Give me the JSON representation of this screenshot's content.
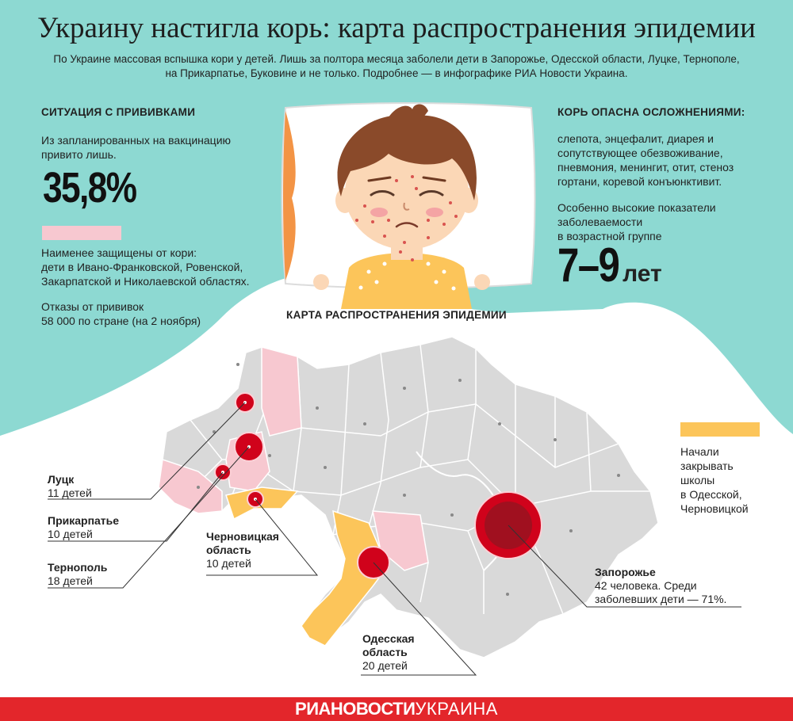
{
  "header": {
    "title": "Украину настигла корь: карта распространения эпидемии",
    "subtitle_line1": "По Украине массовая вспышка кори у детей. Лишь за полтора месяца заболели дети в Запорожье, Одесской области, Луцке, Тернополе,",
    "subtitle_line2": "на Прикарпатье, Буковине и не только. Подробнее — в инфографике РИА Новости Украина."
  },
  "vaccination": {
    "heading": "СИТУАЦИЯ С ПРИВИВКАМИ",
    "planned_line1": "Из запланированных на вакцинацию",
    "planned_line2": "привито лишь.",
    "percent": "35,8%",
    "least_protected_line1": "Наименее защищены от кори:",
    "least_protected_line2": "дети в Ивано-Франковской, Ровенской,",
    "least_protected_line3": "Закарпатской и Николаевской областях.",
    "refusals_line1": "Отказы от прививок",
    "refusals_line2": "58 000 по стране (на 2 ноября)"
  },
  "complications": {
    "heading": "КОРЬ ОПАСНА ОСЛОЖНЕНИЯМИ:",
    "list_line1": "слепота, энцефалит, диарея и",
    "list_line2": "сопутствующее обезвоживание,",
    "list_line3": "пневмония, менингит, отит, стеноз",
    "list_line4": "гортани, коревой конъюнктивит.",
    "incidence_line1": "Особенно высокие показатели",
    "incidence_line2": "заболеваемости",
    "incidence_line3": "в возрастной группе",
    "age_group": "7–9",
    "age_unit": "лет"
  },
  "map": {
    "heading": "КАРТА РАСПРОСТРАНЕНИЯ ЭПИДЕМИИ",
    "legend_schools_line1": "Начали",
    "legend_schools_line2": "закрывать",
    "legend_schools_line3": "школы",
    "legend_schools_line4": "в Одесской,",
    "legend_schools_line5": "Черновицкой",
    "callouts": {
      "lutsk": {
        "name": "Луцк",
        "count": "11 детей"
      },
      "prikarpattya": {
        "name": "Прикарпатье",
        "count": "10 детей"
      },
      "ternopil": {
        "name": "Тернополь",
        "count": "18 детей"
      },
      "chernivtsi": {
        "name_line1": "Черновицкая",
        "name_line2": "область",
        "count": "10 детей"
      },
      "zaporizhzhia": {
        "name": "Запорожье",
        "count_line1": "42 человека. Среди",
        "count_line2": "заболевших дети — 71%."
      },
      "odesa": {
        "name_line1": "Одесская",
        "name_line2": "область",
        "count": "20 детей"
      }
    }
  },
  "footer": {
    "logo_bold": "РИАНОВОСТИ",
    "logo_light": "УКРАИНА"
  },
  "colors": {
    "teal": "#8dd9d2",
    "pink": "#f7c8d0",
    "yellow": "#fcc55a",
    "region_gray": "#d9d9d9",
    "red": "#d0021b",
    "footer_red": "#e3262b"
  }
}
